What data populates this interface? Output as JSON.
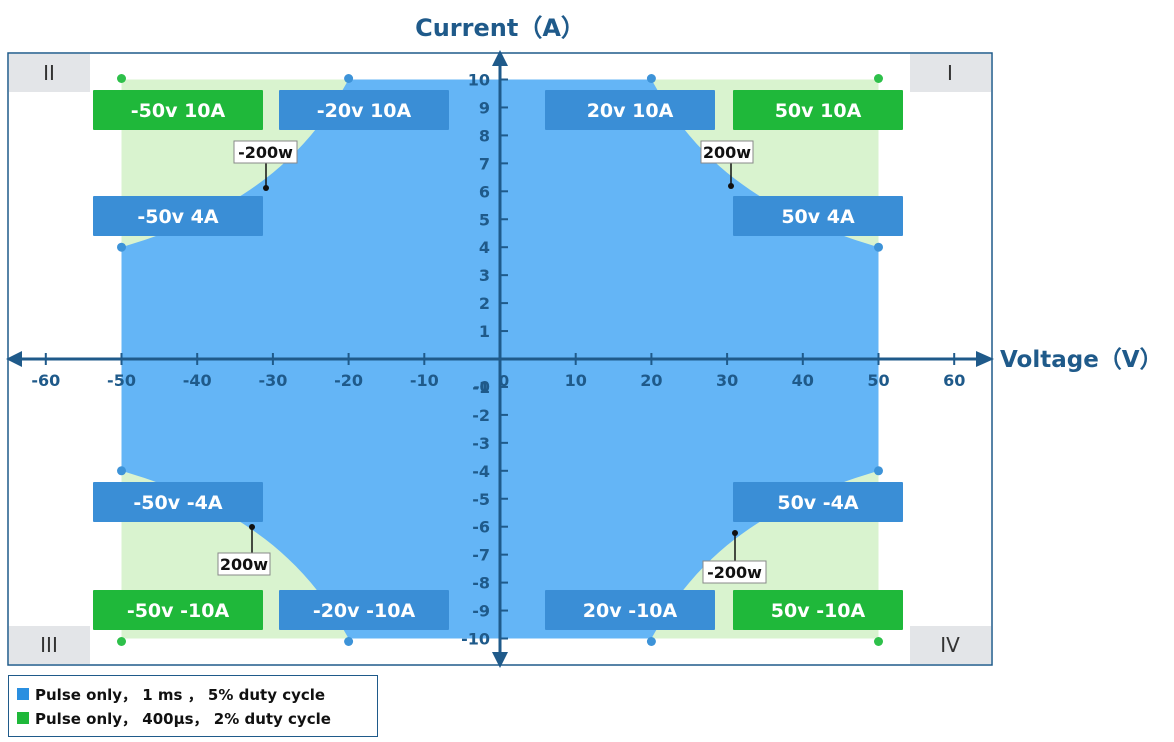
{
  "chart_data": {
    "type": "area",
    "title": "Current（A）",
    "xlabel": "Voltage（V）",
    "ylabel": "Current（A）",
    "xlim": [
      -60,
      60
    ],
    "ylim": [
      -10,
      10
    ],
    "x_ticks": [
      "-60",
      "-50",
      "-40",
      "-30",
      "-20",
      "-10",
      "10",
      "20",
      "30",
      "40",
      "50",
      "60"
    ],
    "y_ticks": [
      "10",
      "9",
      "8",
      "7",
      "6",
      "5",
      "4",
      "3",
      "2",
      "1",
      "-1",
      "-2",
      "-3",
      "-4",
      "-5",
      "-6",
      "-7",
      "-8",
      "-9",
      "-10"
    ],
    "x_zero_label": "0",
    "y_zero_label": "-0",
    "quadrants": [
      "I",
      "II",
      "III",
      "IV"
    ],
    "series": [
      {
        "name": "Pulse only， 1 ms ，  5% duty cycle",
        "color": "#64b5f6",
        "description_points": [
          [
            20,
            10
          ],
          [
            50,
            4
          ],
          [
            50,
            -4
          ],
          [
            20,
            -10
          ],
          [
            -20,
            -10
          ],
          [
            -50,
            -4
          ],
          [
            -50,
            4
          ],
          [
            -20,
            10
          ]
        ]
      },
      {
        "name": "Pulse only， 400µs， 2% duty cycle",
        "color": "#d9f3cf",
        "description_points": [
          [
            50,
            10
          ],
          [
            50,
            -10
          ],
          [
            -50,
            -10
          ],
          [
            -50,
            10
          ]
        ]
      }
    ],
    "points": [
      {
        "x": -50,
        "y": 10,
        "label": "-50v  10A",
        "style": "green"
      },
      {
        "x": -20,
        "y": 10,
        "label": "-20v  10A",
        "style": "blue"
      },
      {
        "x": 20,
        "y": 10,
        "label": "20v  10A",
        "style": "blue"
      },
      {
        "x": 50,
        "y": 10,
        "label": "50v  10A",
        "style": "green"
      },
      {
        "x": -50,
        "y": 4,
        "label": "-50v  4A",
        "style": "blue"
      },
      {
        "x": 50,
        "y": 4,
        "label": "50v  4A",
        "style": "blue"
      },
      {
        "x": -50,
        "y": -4,
        "label": "-50v  -4A",
        "style": "blue"
      },
      {
        "x": 50,
        "y": -4,
        "label": "50v  -4A",
        "style": "blue"
      },
      {
        "x": -50,
        "y": -10,
        "label": "-50v  -10A",
        "style": "green"
      },
      {
        "x": -20,
        "y": -10,
        "label": "-20v  -10A",
        "style": "blue"
      },
      {
        "x": 20,
        "y": -10,
        "label": "20v  -10A",
        "style": "blue"
      },
      {
        "x": 50,
        "y": -10,
        "label": "50v  -10A",
        "style": "green"
      }
    ],
    "power_annotations": [
      {
        "label": "-200w",
        "x": -31.5,
        "y": 6.2
      },
      {
        "label": "200w",
        "x": 30.5,
        "y": 6.2
      },
      {
        "label": "200w",
        "x": -31.5,
        "y": -6.0
      },
      {
        "label": "-200w",
        "x": 30.5,
        "y": -6.2
      }
    ]
  },
  "legend": {
    "items": [
      {
        "label": "Pulse only， 1 ms ，  5% duty cycle",
        "color": "#2a8fe0"
      },
      {
        "label": "Pulse only， 400µs， 2% duty cycle",
        "color": "#1fb83a"
      }
    ]
  }
}
